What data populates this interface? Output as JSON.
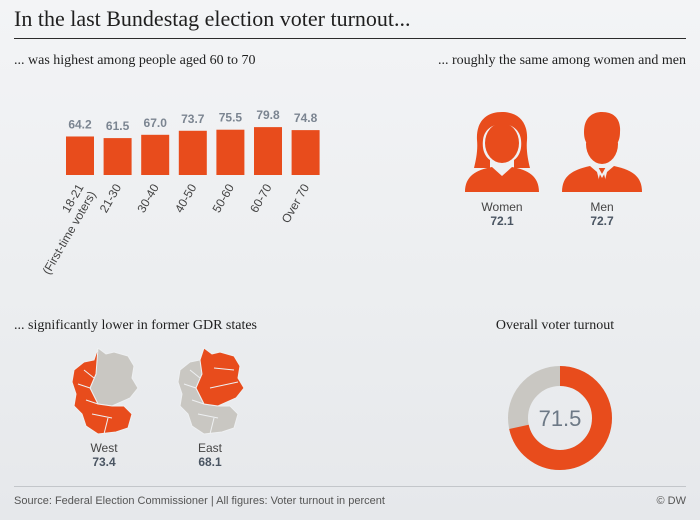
{
  "title": "In the last Bundestag election voter turnout...",
  "colors": {
    "accent": "#e84c1c",
    "grey": "#c9c7c2",
    "value_text": "#7b8591"
  },
  "chart_data": [
    {
      "type": "bar",
      "title": "... was highest among people aged 60 to 70",
      "categories": [
        "18-21\n(First-time voters)",
        "21-30",
        "30-40",
        "40-50",
        "50-60",
        "60-70",
        "Over 70"
      ],
      "values": [
        64.2,
        61.5,
        67.0,
        73.7,
        75.5,
        79.8,
        74.8
      ],
      "value_labels": [
        "64.2",
        "61.5",
        "67.0",
        "73.7",
        "75.5",
        "79.8",
        "74.8"
      ]
    }
  ],
  "gender": {
    "title": "... roughly the same among women and men",
    "women": {
      "label": "Women",
      "value": "72.1",
      "icon": "woman-icon"
    },
    "men": {
      "label": "Men",
      "value": "72.7",
      "icon": "man-icon"
    }
  },
  "gdr": {
    "title": "... significantly lower in former GDR states",
    "west": {
      "label": "West",
      "value": "73.4"
    },
    "east": {
      "label": "East",
      "value": "68.1"
    }
  },
  "overall": {
    "title": "Overall voter turnout",
    "value": 71.5,
    "value_label": "71.5"
  },
  "footer": {
    "source": "Source: Federal Election Commissioner | All figures: Voter turnout in percent",
    "credit": "© DW"
  }
}
